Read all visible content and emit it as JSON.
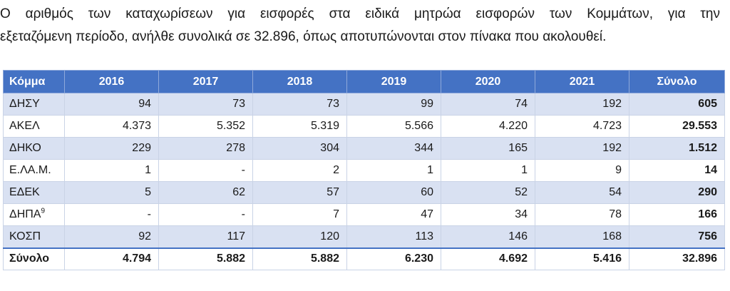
{
  "intro": {
    "line1": "Ο αριθμός των καταχωρίσεων για εισφορές στα ειδικά μητρώα εισφορών των Κομμάτων, για την",
    "line2": "εξεταζόμενη περίοδο, ανήλθε συνολικά σε 32.896, όπως αποτυπώνονται στον πίνακα που ακολουθεί."
  },
  "table": {
    "headers": [
      "Κόμμα",
      "2016",
      "2017",
      "2018",
      "2019",
      "2020",
      "2021",
      "Σύνολο"
    ],
    "rows": [
      {
        "party": "ΔΗΣΥ",
        "footnote": "",
        "values": [
          "94",
          "73",
          "73",
          "99",
          "74",
          "192"
        ],
        "total": "605"
      },
      {
        "party": "ΑΚΕΛ",
        "footnote": "",
        "values": [
          "4.373",
          "5.352",
          "5.319",
          "5.566",
          "4.220",
          "4.723"
        ],
        "total": "29.553"
      },
      {
        "party": "ΔΗΚΟ",
        "footnote": "",
        "values": [
          "229",
          "278",
          "304",
          "344",
          "165",
          "192"
        ],
        "total": "1.512"
      },
      {
        "party": "Ε.ΛΑ.Μ.",
        "footnote": "",
        "values": [
          "1",
          "-",
          "2",
          "1",
          "1",
          "9"
        ],
        "total": "14"
      },
      {
        "party": "ΕΔΕΚ",
        "footnote": "",
        "values": [
          "5",
          "62",
          "57",
          "60",
          "52",
          "54"
        ],
        "total": "290"
      },
      {
        "party": "ΔΗΠΑ",
        "footnote": "9",
        "values": [
          "-",
          "-",
          "7",
          "47",
          "34",
          "78"
        ],
        "total": "166"
      },
      {
        "party": "ΚΟΣΠ",
        "footnote": "",
        "values": [
          "92",
          "117",
          "120",
          "113",
          "146",
          "168"
        ],
        "total": "756"
      }
    ],
    "sum_row": {
      "label": "Σύνολο",
      "values": [
        "4.794",
        "5.882",
        "5.882",
        "6.230",
        "4.692",
        "5.416"
      ],
      "total": "32.896"
    }
  }
}
